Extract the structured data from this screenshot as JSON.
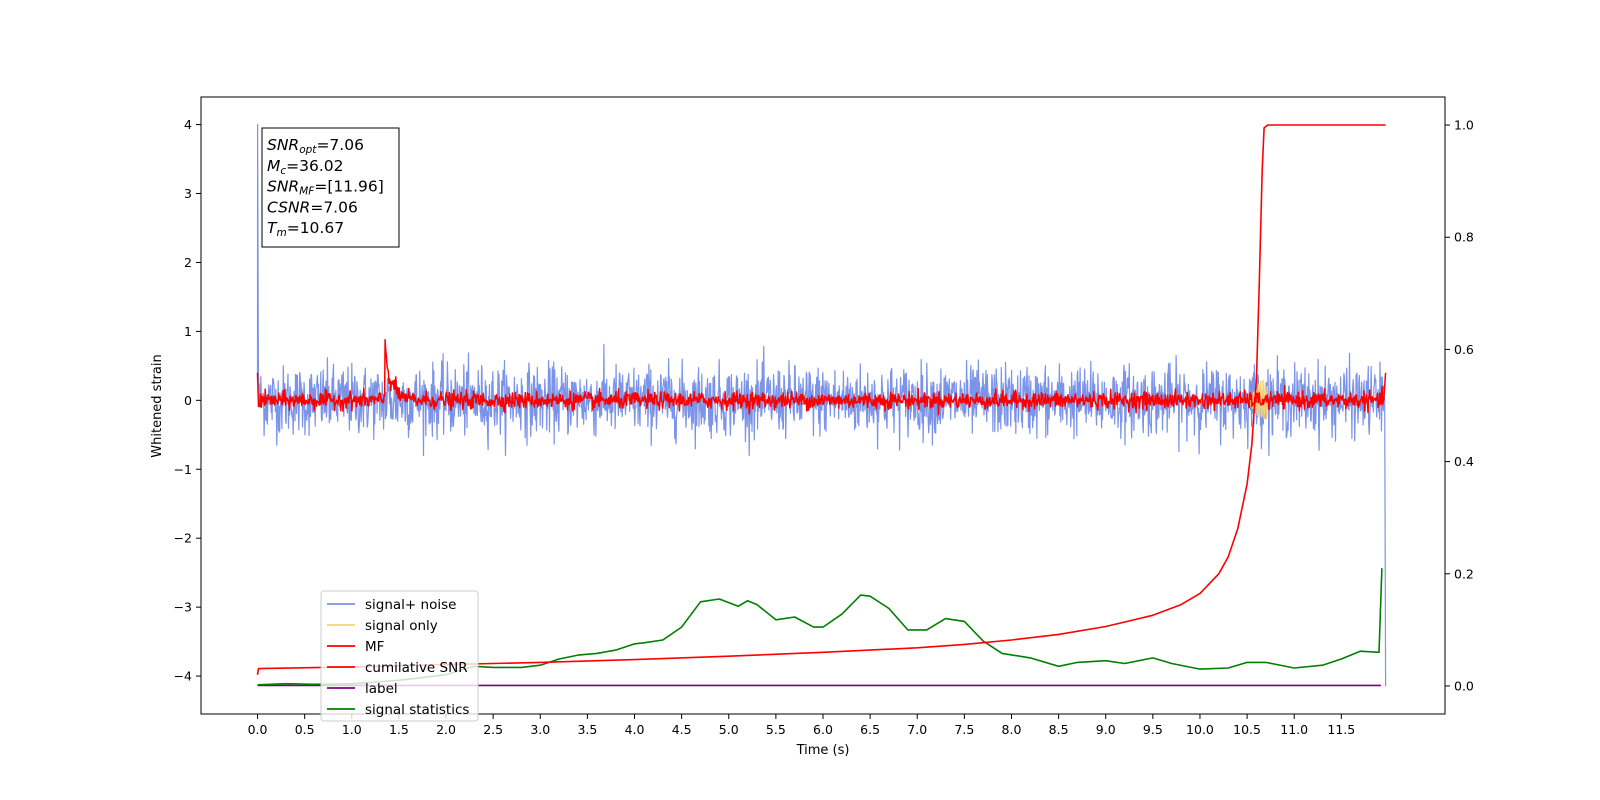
{
  "chart_data": {
    "type": "line",
    "xlabel": "Time (s)",
    "ylabel": "Whitened strain",
    "xlim": [
      -0.6,
      12.6
    ],
    "ylim": [
      -4.55,
      4.4
    ],
    "y2lim": [
      -0.05,
      1.05
    ],
    "x_ticks": [
      "0.0",
      "0.5",
      "1.0",
      "1.5",
      "2.0",
      "2.5",
      "3.0",
      "3.5",
      "4.0",
      "4.5",
      "5.0",
      "5.5",
      "6.0",
      "6.5",
      "7.0",
      "7.5",
      "8.0",
      "8.5",
      "9.0",
      "9.5",
      "10.0",
      "10.5",
      "11.0",
      "11.5"
    ],
    "x_tick_values": [
      0,
      0.5,
      1,
      1.5,
      2,
      2.5,
      3,
      3.5,
      4,
      4.5,
      5,
      5.5,
      6,
      6.5,
      7,
      7.5,
      8,
      8.5,
      9,
      9.5,
      10,
      10.5,
      11,
      11.5
    ],
    "y_ticks": [
      "4",
      "3",
      "2",
      "1",
      "0",
      "−2",
      "−3",
      "−4"
    ],
    "y_tick_values": [
      4,
      3,
      2,
      1,
      0,
      -2,
      -3,
      -4
    ],
    "y_ticks_minus1": "−1",
    "y2_ticks": [
      "1.0",
      "0.8",
      "0.6",
      "0.4",
      "0.2",
      "0.0"
    ],
    "y2_tick_values": [
      1.0,
      0.8,
      0.6,
      0.4,
      0.2,
      0.0
    ],
    "annotation": [
      {
        "var": "SNR",
        "sub": "opt",
        "rest": "=7.06"
      },
      {
        "var": "M",
        "sub": "c",
        "rest": "=36.02"
      },
      {
        "var": "SNR",
        "sub": "MF",
        "rest": "=[11.96]"
      },
      {
        "var": "CSNR",
        "sub": "",
        "rest": "=7.06"
      },
      {
        "var": "T",
        "sub": "m",
        "rest": "=10.67"
      }
    ],
    "legend": {
      "placement": "lower-left",
      "entries": [
        {
          "name": "signal+ noise",
          "color": "#7b93e8"
        },
        {
          "name": "signal only",
          "color": "#f5d27a"
        },
        {
          "name": "MF",
          "color": "#ff0000"
        },
        {
          "name": "cumilative SNR",
          "color": "#ff0000"
        },
        {
          "name": "label",
          "color": "#7f007f"
        },
        {
          "name": "signal statistics",
          "color": "#008000"
        }
      ]
    },
    "series": [
      {
        "name": "signal+ noise",
        "axis": "left",
        "color": "#7b93e8",
        "noise_amplitude": 0.45,
        "start_spike": 4.0,
        "end_value": -4.15,
        "x_range": [
          0,
          11.97
        ]
      },
      {
        "name": "signal only",
        "axis": "left",
        "color": "#f5d27a",
        "peak_time": 10.67,
        "peak_amplitude": 0.3
      },
      {
        "name": "MF",
        "axis": "left",
        "color": "#ff0000",
        "noise_amplitude": 0.12,
        "bump_time": 1.35,
        "bump_peak": 1.0,
        "start_value": 0.4,
        "end_value": 0.4
      },
      {
        "name": "cumilative SNR",
        "axis": "right",
        "color": "#ff0000",
        "x": [
          0.0,
          0.01,
          1.0,
          2.0,
          3.0,
          4.0,
          5.0,
          6.0,
          7.0,
          7.5,
          8.0,
          8.5,
          9.0,
          9.5,
          9.8,
          10.0,
          10.2,
          10.3,
          10.4,
          10.5,
          10.55,
          10.6,
          10.63,
          10.66,
          10.68,
          10.72,
          11.0,
          11.5,
          11.97
        ],
        "values": [
          0.02,
          0.031,
          0.034,
          0.038,
          0.042,
          0.047,
          0.053,
          0.06,
          0.068,
          0.074,
          0.082,
          0.092,
          0.106,
          0.126,
          0.145,
          0.165,
          0.2,
          0.23,
          0.28,
          0.36,
          0.43,
          0.55,
          0.72,
          0.92,
          0.995,
          1.0,
          1.0,
          1.0,
          1.0
        ]
      },
      {
        "name": "label",
        "axis": "right",
        "color": "#7f007f",
        "x": [
          0.0,
          11.92
        ],
        "values": [
          0.001,
          0.001
        ]
      },
      {
        "name": "signal statistics",
        "axis": "right",
        "color": "#008000",
        "x": [
          0.0,
          0.3,
          0.6,
          1.0,
          1.5,
          2.0,
          2.3,
          2.5,
          2.8,
          3.0,
          3.2,
          3.4,
          3.6,
          3.8,
          4.0,
          4.1,
          4.3,
          4.5,
          4.7,
          4.9,
          5.1,
          5.2,
          5.3,
          5.5,
          5.7,
          5.9,
          6.0,
          6.2,
          6.4,
          6.5,
          6.7,
          6.9,
          7.1,
          7.3,
          7.5,
          7.7,
          7.9,
          8.2,
          8.5,
          8.7,
          9.0,
          9.2,
          9.5,
          9.7,
          10.0,
          10.3,
          10.5,
          10.7,
          11.0,
          11.3,
          11.5,
          11.7,
          11.9,
          11.93
        ],
        "values": [
          0.002,
          0.004,
          0.003,
          0.004,
          0.01,
          0.02,
          0.035,
          0.033,
          0.033,
          0.037,
          0.048,
          0.055,
          0.058,
          0.064,
          0.075,
          0.077,
          0.082,
          0.105,
          0.15,
          0.155,
          0.142,
          0.152,
          0.145,
          0.118,
          0.123,
          0.105,
          0.105,
          0.128,
          0.162,
          0.16,
          0.138,
          0.1,
          0.1,
          0.12,
          0.115,
          0.08,
          0.058,
          0.05,
          0.035,
          0.042,
          0.045,
          0.04,
          0.05,
          0.04,
          0.03,
          0.032,
          0.042,
          0.042,
          0.032,
          0.037,
          0.048,
          0.062,
          0.06,
          0.21
        ]
      }
    ]
  }
}
